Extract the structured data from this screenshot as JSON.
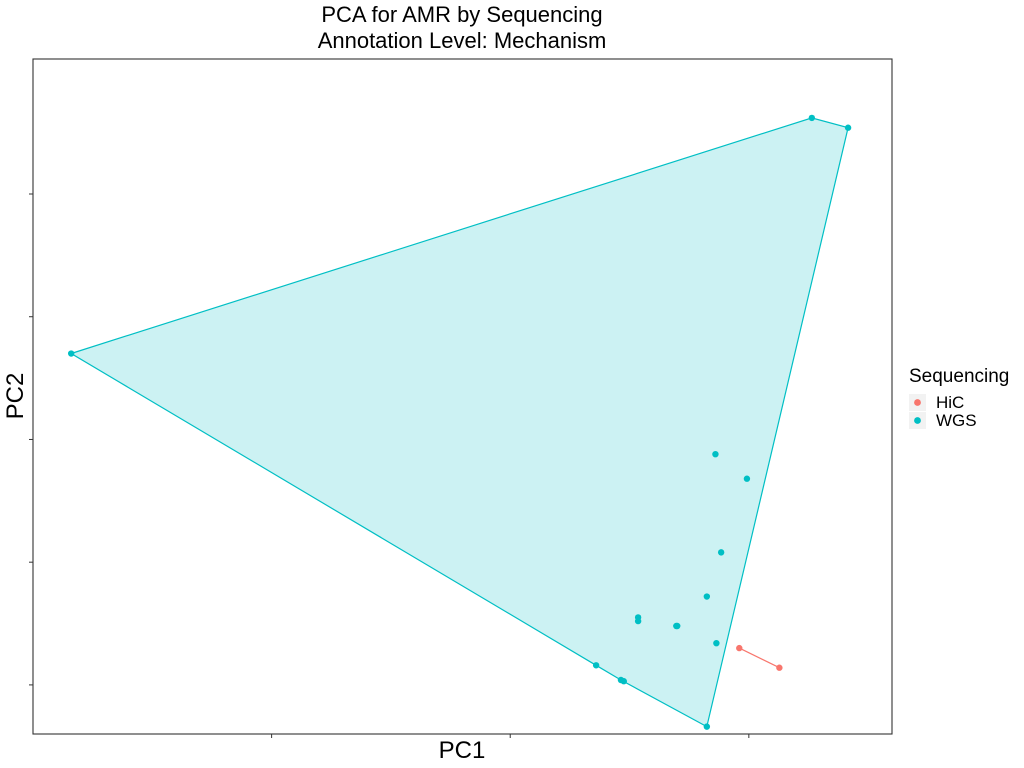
{
  "chart_data": {
    "type": "scatter",
    "title": [
      "PCA for AMR by Sequencing",
      "Annotation Level: Mechanism"
    ],
    "xlabel": "PC1",
    "ylabel": "PC2",
    "xlim": [
      -3.5,
      1.0
    ],
    "ylim": [
      -1.2,
      1.55
    ],
    "x_ticks": [
      -2.25,
      -1.0,
      0.25
    ],
    "y_ticks": [
      -1.0,
      -0.5,
      0.0,
      0.5,
      1.0
    ],
    "grid": false,
    "legend": {
      "title": "Sequencing",
      "placement": "right",
      "entries": [
        {
          "label": "HiC",
          "color": "#F8766D"
        },
        {
          "label": "WGS",
          "color": "#00BFC4"
        }
      ]
    },
    "hull": true,
    "series": [
      {
        "name": "HiC",
        "color": "#F8766D",
        "x": [
          0.2,
          0.41
        ],
        "y": [
          -0.85,
          -0.93
        ]
      },
      {
        "name": "WGS",
        "color": "#00BFC4",
        "x": [
          0.58,
          0.77,
          -3.3,
          0.075,
          0.24,
          0.105,
          0.03,
          -0.33,
          -0.33,
          -0.125,
          -0.13,
          0.08,
          -0.55,
          -0.42,
          -0.405,
          0.03
        ],
        "y": [
          1.31,
          1.27,
          0.35,
          -0.06,
          -0.16,
          -0.46,
          -0.64,
          -0.725,
          -0.74,
          -0.76,
          -0.76,
          -0.83,
          -0.92,
          -0.98,
          -0.985,
          -1.17
        ]
      }
    ]
  }
}
